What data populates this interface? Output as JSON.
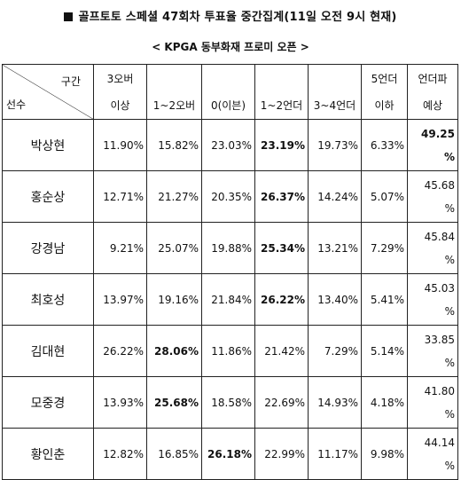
{
  "title": "골프토토 스페셜 47회차 투표율 중간집계(11일 오전 9시 현재)",
  "subtitle": "< KPGA 동부화재 프로미 오픈 >",
  "header": {
    "section_label": "구간",
    "player_label": "선수",
    "columns": [
      {
        "line1": "3오버",
        "line2": "이상"
      },
      {
        "line1": "",
        "line2": "1~2오버"
      },
      {
        "line1": "",
        "line2": "0(이븐)"
      },
      {
        "line1": "",
        "line2": "1~2언더"
      },
      {
        "line1": "",
        "line2": "3~4언더"
      },
      {
        "line1": "5언더",
        "line2": "이하"
      },
      {
        "line1": "언더파",
        "line2": "예상"
      }
    ]
  },
  "rows": [
    {
      "name": "박상현",
      "values": [
        "11.90%",
        "15.82%",
        "23.03%",
        "23.19%",
        "19.73%",
        "6.33%"
      ],
      "under_top": "49.25",
      "under_pct": "%",
      "bold": [
        3,
        6
      ]
    },
    {
      "name": "홍순상",
      "values": [
        "12.71%",
        "21.27%",
        "20.35%",
        "26.37%",
        "14.24%",
        "5.07%"
      ],
      "under_top": "45.68",
      "under_pct": "%",
      "bold": [
        3
      ]
    },
    {
      "name": "강경남",
      "values": [
        "9.21%",
        "25.07%",
        "19.88%",
        "25.34%",
        "13.21%",
        "7.29%"
      ],
      "under_top": "45.84",
      "under_pct": "%",
      "bold": [
        3
      ]
    },
    {
      "name": "최호성",
      "values": [
        "13.97%",
        "19.16%",
        "21.84%",
        "26.22%",
        "13.40%",
        "5.41%"
      ],
      "under_top": "45.03",
      "under_pct": "%",
      "bold": [
        3
      ]
    },
    {
      "name": "김대현",
      "values": [
        "26.22%",
        "28.06%",
        "11.86%",
        "21.42%",
        "7.29%",
        "5.14%"
      ],
      "under_top": "33.85",
      "under_pct": "%",
      "bold": [
        1
      ]
    },
    {
      "name": "모중경",
      "values": [
        "13.93%",
        "25.68%",
        "18.58%",
        "22.69%",
        "14.93%",
        "4.18%"
      ],
      "under_top": "41.80",
      "under_pct": "%",
      "bold": [
        1
      ]
    },
    {
      "name": "황인춘",
      "values": [
        "12.82%",
        "16.85%",
        "26.18%",
        "22.99%",
        "11.17%",
        "9.98%"
      ],
      "under_top": "44.14",
      "under_pct": "%",
      "bold": [
        2
      ]
    }
  ]
}
